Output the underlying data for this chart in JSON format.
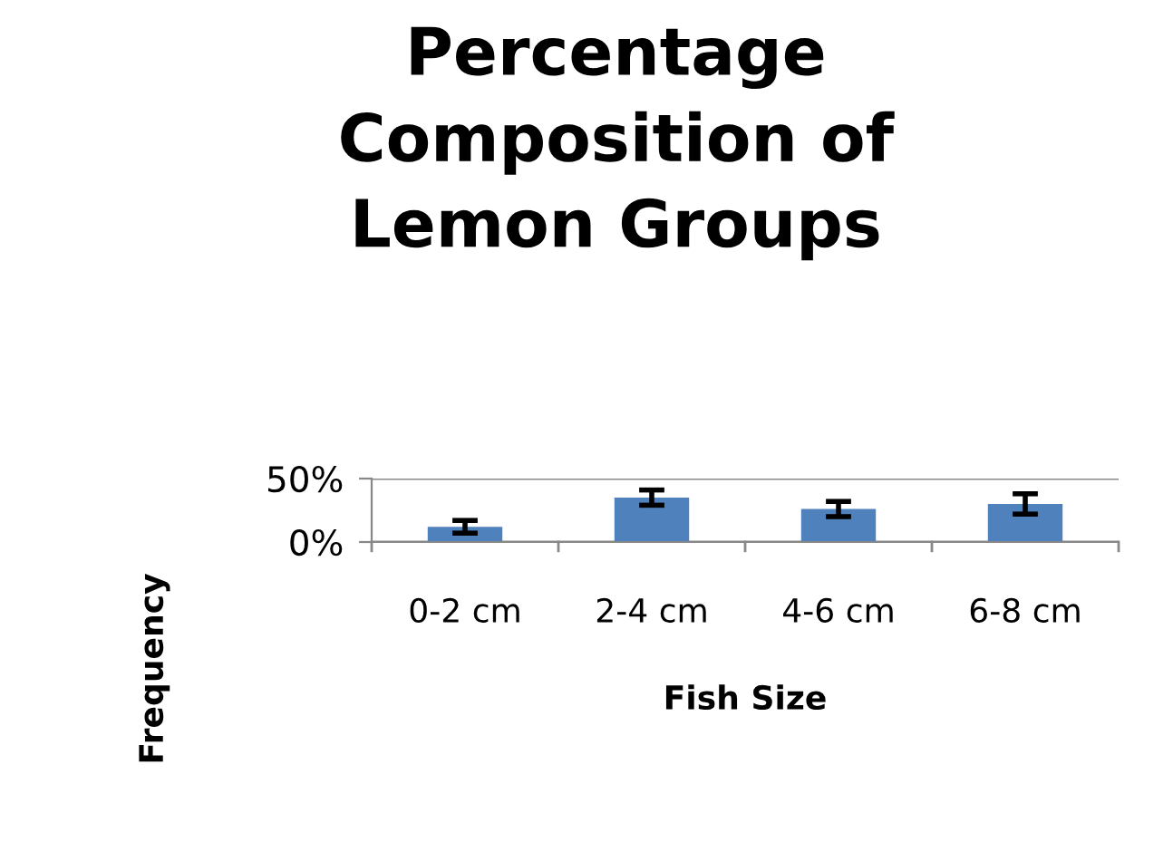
{
  "chart_data": {
    "type": "bar",
    "title": "Percentage\nComposition of\nLemon Groups",
    "xlabel": "Fish Size",
    "ylabel": "Frequency",
    "categories": [
      "0-2 cm",
      "2-4 cm",
      "4-6 cm",
      "6-8 cm"
    ],
    "values": [
      12,
      35,
      26,
      30
    ],
    "errors": [
      5,
      6,
      6,
      8
    ],
    "color": "#4f81bd",
    "ylim": [
      0,
      50
    ],
    "yticks": [
      {
        "value": 0,
        "label": "0%"
      },
      {
        "value": 50,
        "label": "50%"
      }
    ],
    "grid": "y"
  }
}
